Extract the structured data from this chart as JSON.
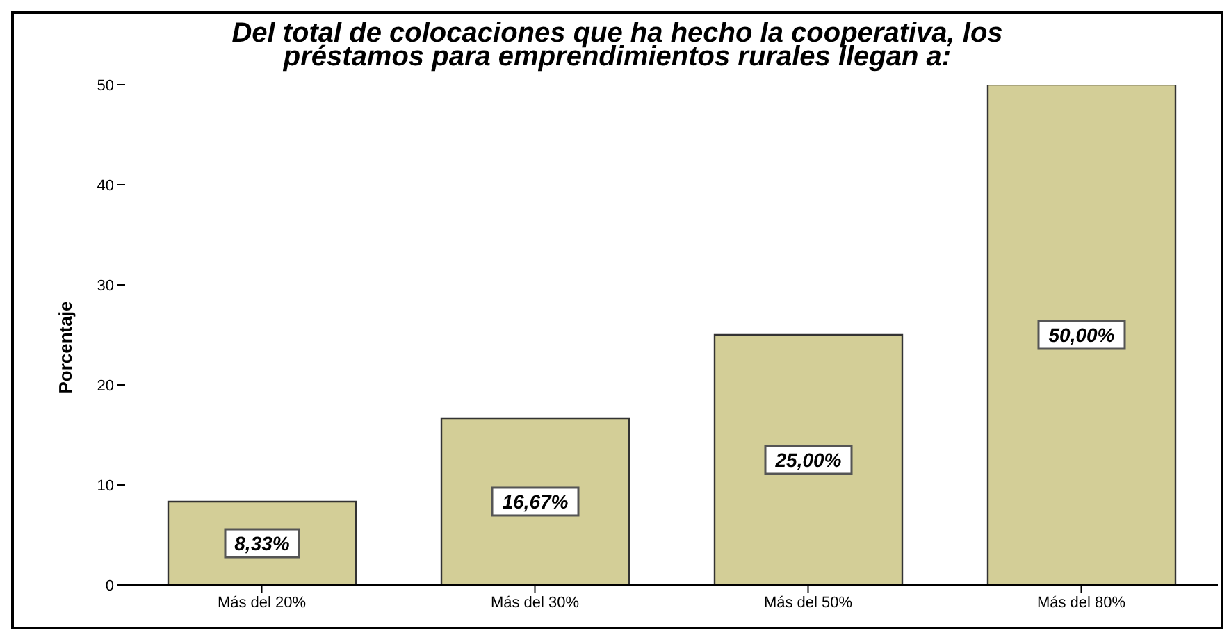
{
  "chart_data": {
    "type": "bar",
    "title": "Del total de colocaciones que ha hecho la cooperativa, los préstamos para emprendimientos rurales llegan a:",
    "ylabel": "Porcentaje",
    "categories": [
      "Más del 20%",
      "Más del 30%",
      "Más del 50%",
      "Más del 80%"
    ],
    "values": [
      8.33,
      16.67,
      25,
      50
    ],
    "value_labels": [
      "8,33%",
      "16,67%",
      "25,00%",
      "50,00%"
    ],
    "color": "#d3ce97",
    "ylim": [
      0,
      50
    ],
    "yticks": [
      0,
      10,
      20,
      30,
      40,
      50
    ],
    "grid": false,
    "legend": false
  }
}
